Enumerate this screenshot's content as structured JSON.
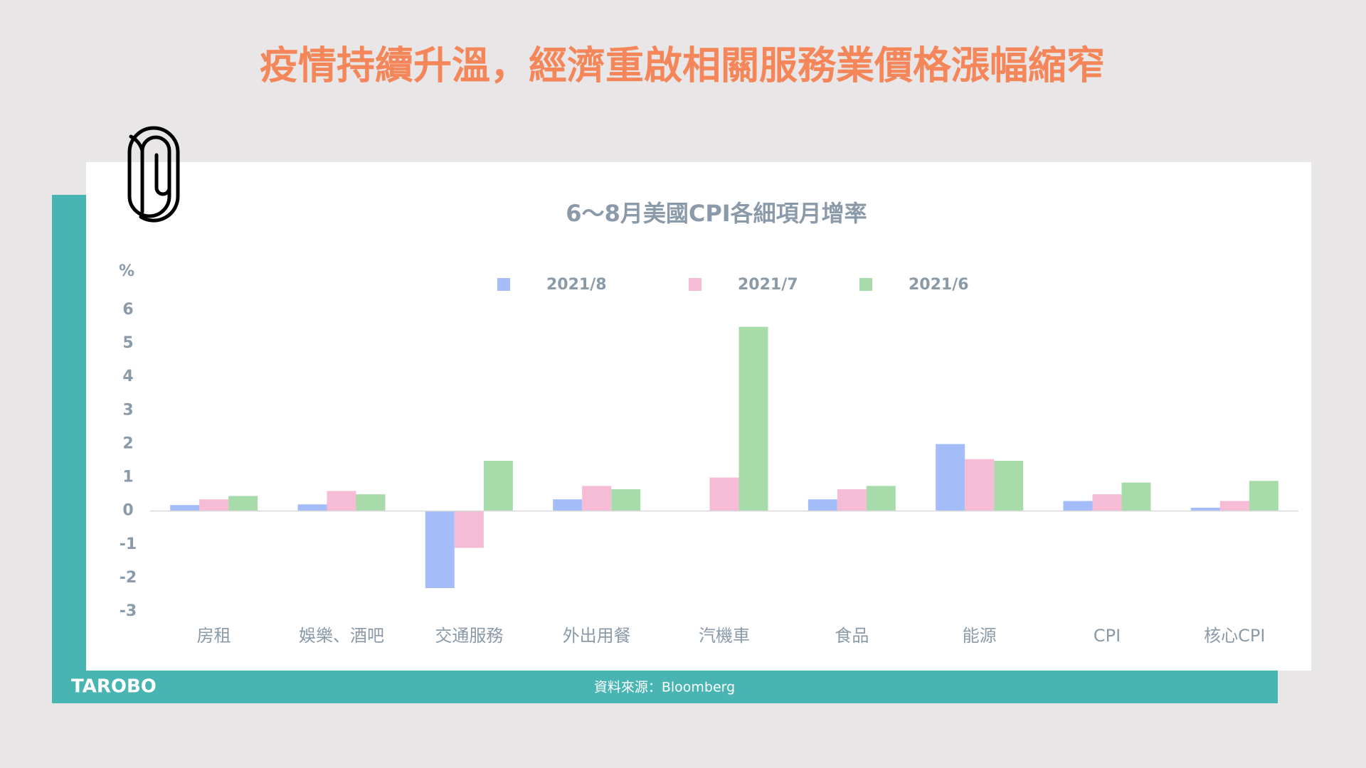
{
  "header": {
    "title": "疫情持續升溫，經濟重啟相關服務業價格漲幅縮窄"
  },
  "footer": {
    "source": "資料來源：Bloomberg",
    "logo": "TAROBO"
  },
  "chart_data": {
    "type": "bar",
    "title": "6～8月美國CPI各細項月增率",
    "y_label": "%",
    "categories": [
      "房租",
      "娛樂、酒吧",
      "交通服務",
      "外出用餐",
      "汽機車",
      "食品",
      "能源",
      "CPI",
      "核心CPI"
    ],
    "series": [
      {
        "name": "2021/8",
        "color": "#a4bdf8",
        "values": [
          0.18,
          0.2,
          -2.3,
          0.35,
          0,
          0.35,
          2.0,
          0.3,
          0.1
        ]
      },
      {
        "name": "2021/7",
        "color": "#f6bcd6",
        "values": [
          0.35,
          0.6,
          -1.1,
          0.75,
          1.0,
          0.65,
          1.55,
          0.5,
          0.3
        ]
      },
      {
        "name": "2021/6",
        "color": "#a8dbaa",
        "values": [
          0.45,
          0.5,
          1.5,
          0.65,
          5.5,
          0.75,
          1.5,
          0.85,
          0.9
        ]
      }
    ],
    "ylim": [
      -3,
      6
    ],
    "yticks": [
      -3,
      -2,
      -1,
      0,
      1,
      2,
      3,
      4,
      5,
      6
    ],
    "grid": false,
    "legend": "top"
  }
}
